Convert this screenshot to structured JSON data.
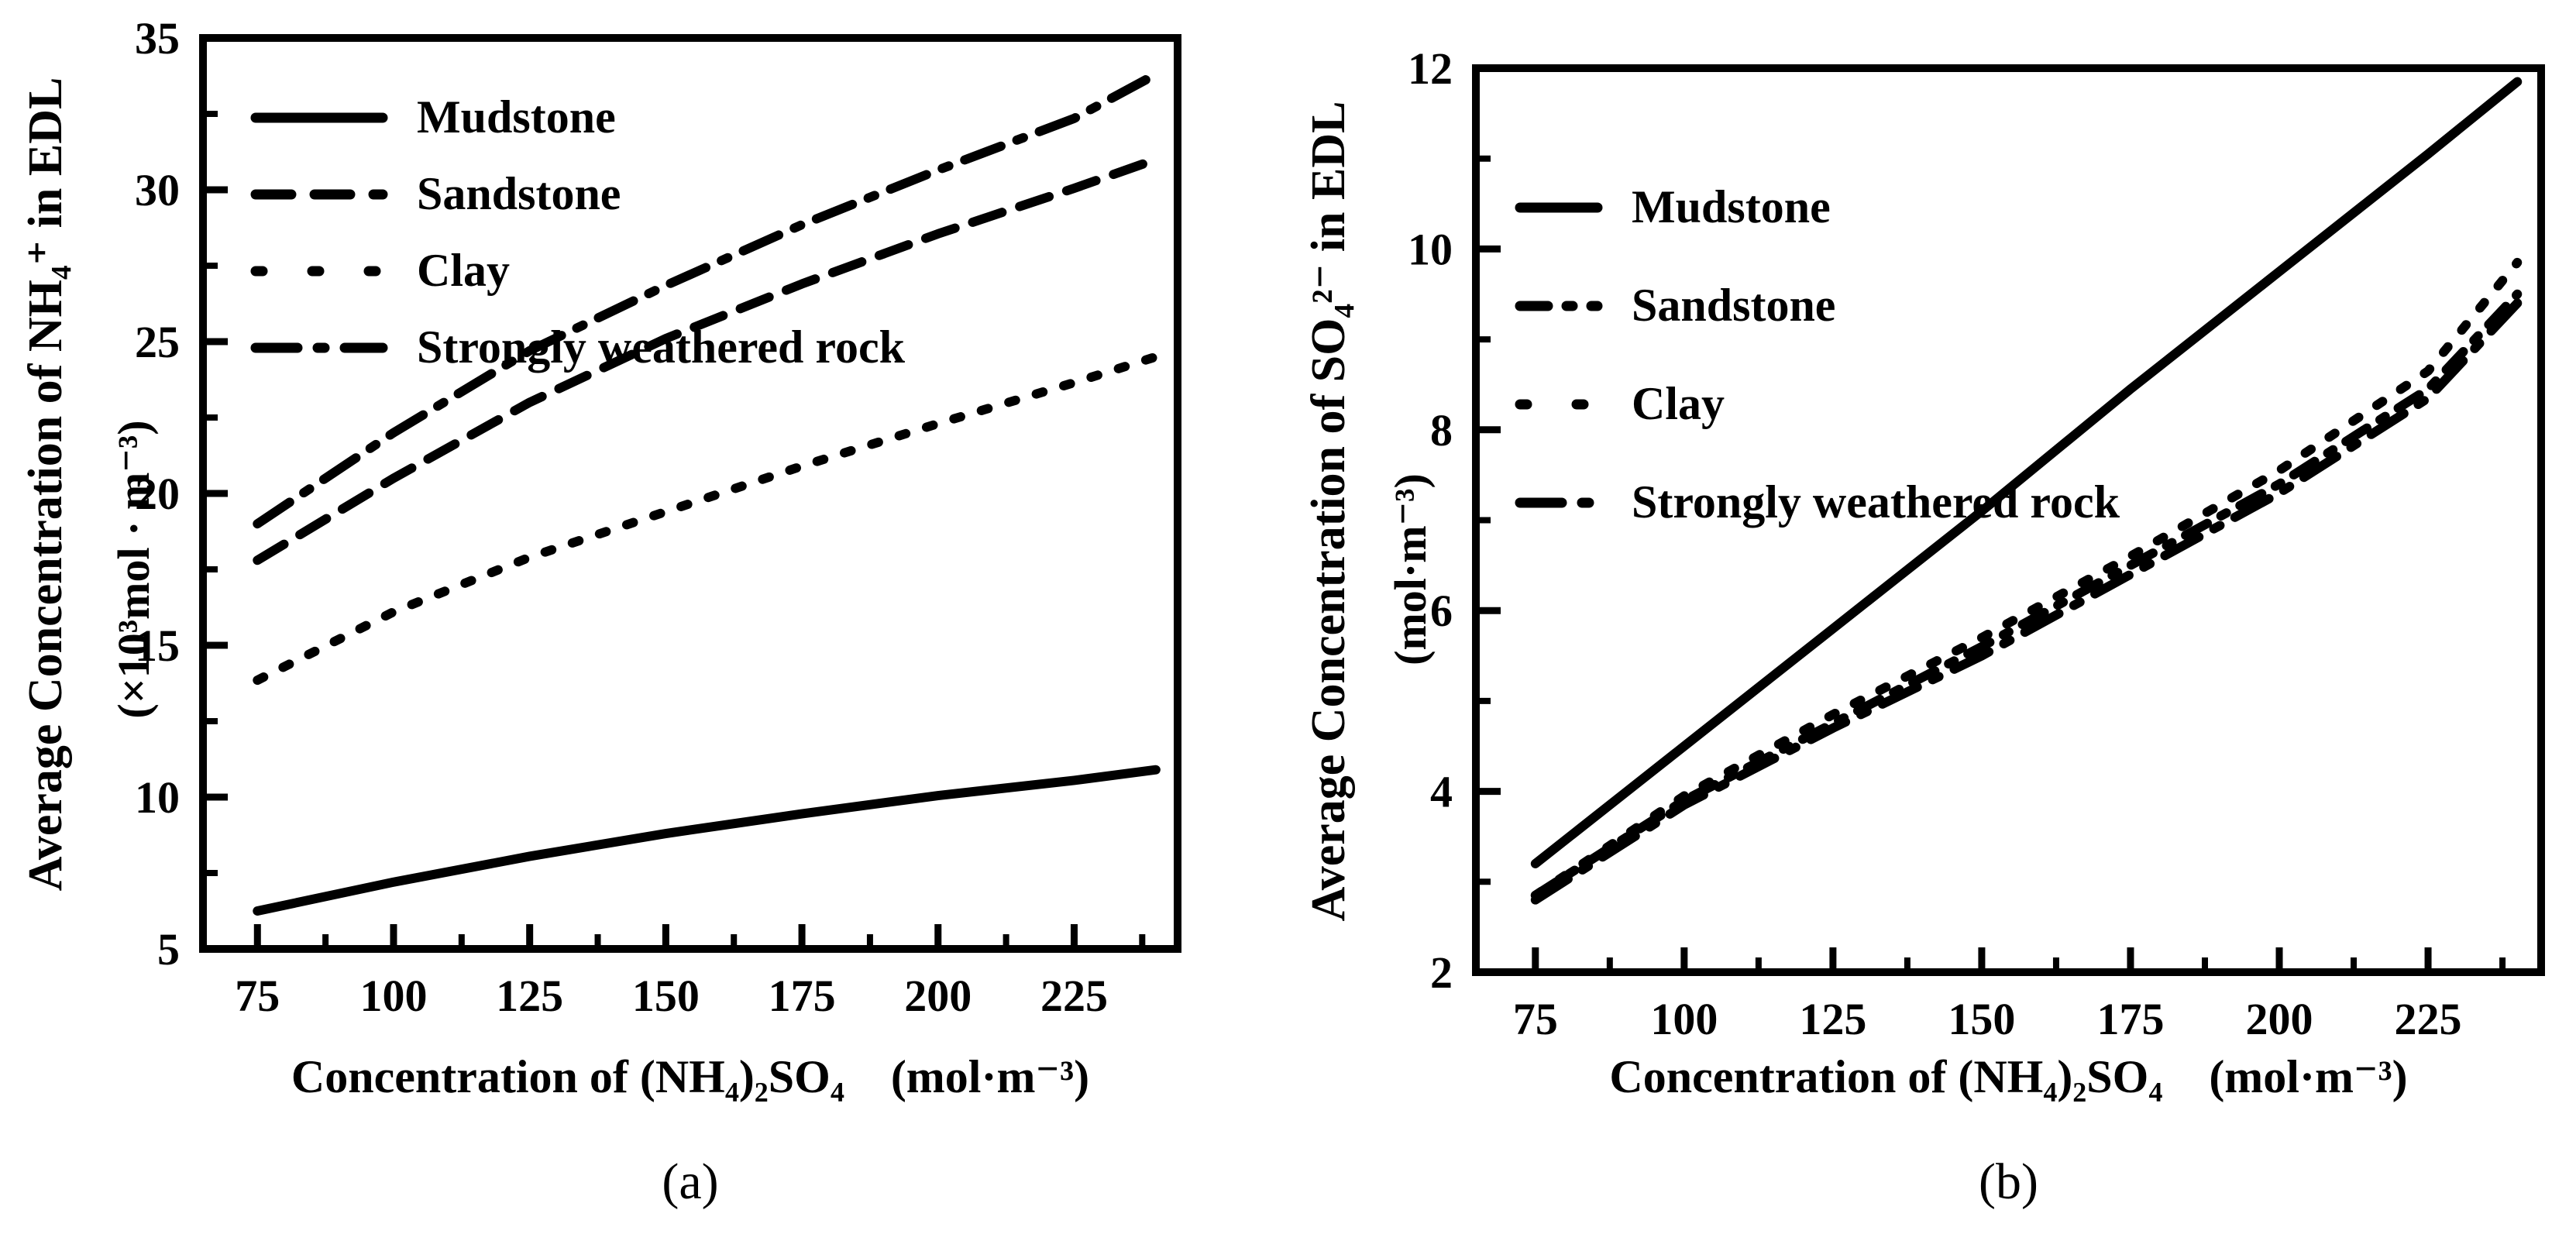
{
  "page": {
    "background": "#ffffff",
    "ink": "#000000"
  },
  "chart_data": [
    {
      "id": "a",
      "type": "line",
      "caption": "(a)",
      "title": "",
      "xlabel": "Concentration of (NH₄)₂SO₄ (mol·m⁻³)",
      "ylabel": "Average Concentration of NH₄⁺ in EDL",
      "ylabel_units": "(×10³mol · m⁻³)",
      "xlim": [
        65,
        244
      ],
      "ylim": [
        5,
        35
      ],
      "x_ticks": [
        75,
        100,
        125,
        150,
        175,
        200,
        225
      ],
      "x_minor_step": 12.5,
      "y_ticks": [
        5,
        10,
        15,
        20,
        25,
        30,
        35
      ],
      "y_minor_step": 2.5,
      "grid": false,
      "legend_position": "top-left",
      "x": [
        75,
        100,
        125,
        150,
        175,
        200,
        225,
        240
      ],
      "series": [
        {
          "name": "Mudstone",
          "style": "solid",
          "values": [
            6.25,
            7.2,
            8.05,
            8.8,
            9.45,
            10.05,
            10.55,
            10.9
          ]
        },
        {
          "name": "Sandstone",
          "style": "dash",
          "values": [
            17.8,
            20.5,
            23.0,
            25.1,
            26.9,
            28.55,
            30.05,
            31.0
          ]
        },
        {
          "name": "Clay",
          "style": "dot",
          "values": [
            13.85,
            16.1,
            17.9,
            19.4,
            20.9,
            22.3,
            23.65,
            24.5
          ]
        },
        {
          "name": "Strongly weathered rock",
          "style": "dashdot",
          "values": [
            19.0,
            22.0,
            24.7,
            26.85,
            28.85,
            30.65,
            32.35,
            33.8
          ]
        }
      ]
    },
    {
      "id": "b",
      "type": "line",
      "caption": "(b)",
      "title": "",
      "xlabel": "Concentration of (NH₄)₂SO₄ (mol·m⁻³)",
      "ylabel": "Average Concentration of SO₄²⁻ in EDL",
      "ylabel_units": "(mol·m⁻³)",
      "xlim": [
        65,
        244
      ],
      "ylim": [
        2,
        12
      ],
      "x_ticks": [
        75,
        100,
        125,
        150,
        175,
        200,
        225
      ],
      "x_minor_step": 12.5,
      "y_ticks": [
        2,
        4,
        6,
        8,
        10,
        12
      ],
      "y_minor_step": 1,
      "grid": false,
      "legend_position": "top-left",
      "x": [
        75,
        100,
        125,
        150,
        175,
        200,
        225,
        240
      ],
      "series": [
        {
          "name": "Mudstone",
          "style": "solid",
          "values": [
            3.2,
            4.5,
            5.8,
            7.1,
            8.45,
            9.75,
            11.05,
            11.85
          ]
        },
        {
          "name": "Sandstone",
          "style": "dashdot2",
          "values": [
            2.85,
            3.9,
            4.75,
            5.6,
            6.5,
            7.4,
            8.45,
            9.5
          ]
        },
        {
          "name": "Clay",
          "style": "dot",
          "values": [
            2.85,
            3.95,
            4.85,
            5.7,
            6.6,
            7.55,
            8.65,
            9.85
          ]
        },
        {
          "name": "Strongly weathered rock",
          "style": "dashdot",
          "values": [
            2.8,
            3.85,
            4.7,
            5.5,
            6.4,
            7.3,
            8.35,
            9.4
          ]
        }
      ]
    }
  ]
}
